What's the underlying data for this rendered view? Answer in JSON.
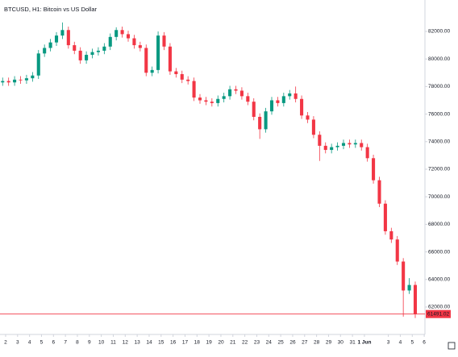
{
  "chart_data": {
    "type": "candlestick",
    "title": "BTCUSD, H1: Bitcoin vs US Dollar",
    "up_color": "#089981",
    "down_color": "#f23645",
    "xlim": [
      1.53,
      37.06
    ],
    "ylim": [
      60010,
      84280
    ],
    "xticks": [
      2,
      3,
      4,
      5,
      6,
      7,
      8,
      9,
      10,
      11,
      12,
      13,
      14,
      15,
      16,
      17,
      18,
      19,
      20,
      21,
      22,
      23,
      24,
      25,
      26,
      27,
      28,
      29,
      30,
      31,
      {
        "value": 32,
        "label": "1 Jun"
      },
      {
        "value": 34,
        "label": "3"
      },
      {
        "value": 35,
        "label": "4"
      },
      {
        "value": 36,
        "label": "5"
      },
      {
        "value": 37,
        "label": "6"
      }
    ],
    "yticks": [
      {
        "value": 62000,
        "label": "62000.00"
      },
      {
        "value": 64000,
        "label": "64000.00"
      },
      {
        "value": 66000,
        "label": "66000.00"
      },
      {
        "value": 68000,
        "label": "68000.00"
      },
      {
        "value": 70000,
        "label": "70000.00"
      },
      {
        "value": 72000,
        "label": "72000.00"
      },
      {
        "value": 74000,
        "label": "74000.00"
      },
      {
        "value": 76000,
        "label": "76000.00"
      },
      {
        "value": 78000,
        "label": "78000.00"
      },
      {
        "value": 80000,
        "label": "80000.00"
      },
      {
        "value": 82000,
        "label": "82000.00"
      }
    ],
    "last_price": 61491.02,
    "x": [
      1.75,
      2.25,
      2.75,
      3.25,
      3.75,
      4.25,
      4.75,
      5.25,
      5.75,
      6.25,
      6.75,
      7.25,
      7.75,
      8.25,
      8.75,
      9.25,
      9.75,
      10.25,
      10.75,
      11.25,
      11.75,
      12.25,
      12.75,
      13.25,
      13.75,
      14.25,
      14.75,
      15.25,
      15.75,
      16.25,
      16.75,
      17.25,
      17.75,
      18.25,
      18.75,
      19.25,
      19.75,
      20.25,
      20.75,
      21.25,
      21.75,
      22.25,
      22.75,
      23.25,
      23.75,
      24.25,
      24.75,
      25.25,
      25.75,
      26.25,
      26.75,
      27.25,
      27.75,
      28.25,
      28.75,
      29.25,
      29.75,
      30.25,
      30.75,
      31.25,
      31.75,
      32.25,
      32.75,
      33.25,
      33.75,
      34.25,
      34.75,
      35.25,
      35.75,
      36.25
    ],
    "open": [
      78300,
      78400,
      78300,
      78500,
      78450,
      78600,
      78800,
      80400,
      80800,
      81200,
      81700,
      82100,
      81000,
      80600,
      79900,
      80300,
      80500,
      80600,
      80900,
      81600,
      82100,
      81800,
      81500,
      81000,
      80800,
      79000,
      79200,
      81700,
      80900,
      79100,
      78900,
      78500,
      78400,
      77200,
      77000,
      76900,
      76800,
      77100,
      77300,
      77800,
      77700,
      77300,
      76900,
      75800,
      74900,
      76200,
      77000,
      76800,
      77300,
      77500,
      77100,
      75900,
      75600,
      74500,
      73700,
      73400,
      73600,
      73700,
      73900,
      73800,
      73900,
      73600,
      72800,
      71200,
      69500,
      67500,
      66900,
      65300,
      63200,
      63600
    ],
    "high": [
      78650,
      78650,
      78750,
      78750,
      78850,
      79050,
      80650,
      81050,
      81450,
      81950,
      82650,
      82350,
      81250,
      80850,
      80550,
      80750,
      80850,
      81150,
      81850,
      82300,
      82350,
      82050,
      81750,
      81250,
      81050,
      79450,
      82000,
      81950,
      81150,
      79350,
      79150,
      78750,
      78650,
      77450,
      77250,
      77150,
      77350,
      77550,
      78050,
      78050,
      77950,
      77550,
      77150,
      76050,
      76450,
      77250,
      77250,
      77550,
      77750,
      78000,
      77350,
      76150,
      75850,
      74750,
      73950,
      73850,
      73950,
      74150,
      74150,
      74150,
      74150,
      73850,
      73050,
      71450,
      69750,
      67750,
      67150,
      65550,
      64100,
      63850
    ],
    "low": [
      78050,
      78050,
      78050,
      78200,
      78200,
      78350,
      78550,
      80150,
      80550,
      80950,
      81450,
      80750,
      80350,
      79650,
      79650,
      80050,
      80250,
      80350,
      80650,
      81350,
      81550,
      81250,
      80750,
      80550,
      78750,
      78750,
      78950,
      80650,
      78850,
      78650,
      78250,
      78150,
      76950,
      76750,
      76650,
      76550,
      76550,
      76850,
      77050,
      77450,
      77050,
      76650,
      75550,
      74200,
      74650,
      75950,
      76550,
      76550,
      77050,
      76850,
      75650,
      75350,
      74250,
      72600,
      73150,
      73150,
      73350,
      73450,
      73550,
      73550,
      73350,
      72550,
      70950,
      69250,
      67250,
      66650,
      65050,
      61300,
      62950,
      61200
    ],
    "close": [
      78400,
      78300,
      78500,
      78450,
      78600,
      78800,
      80400,
      80800,
      81200,
      81700,
      82100,
      81000,
      80600,
      79900,
      80300,
      80500,
      80600,
      80900,
      81600,
      82100,
      81800,
      81500,
      81000,
      80800,
      79000,
      79200,
      81700,
      80900,
      79100,
      78900,
      78500,
      78400,
      77200,
      77000,
      76900,
      76800,
      77100,
      77300,
      77800,
      77700,
      77300,
      76900,
      75800,
      74900,
      76200,
      77000,
      76800,
      77300,
      77500,
      77100,
      75900,
      75600,
      74500,
      73700,
      73400,
      73600,
      73700,
      73900,
      73800,
      73900,
      73600,
      72800,
      71200,
      69500,
      67500,
      66900,
      65300,
      63200,
      63600,
      61491.02
    ]
  }
}
